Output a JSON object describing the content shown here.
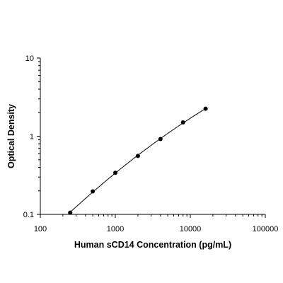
{
  "chart_data": {
    "type": "scatter",
    "title": "",
    "xlabel": "Human sCD14 Concentration (pg/mL)",
    "ylabel": "Optical Density",
    "x_scale": "log",
    "y_scale": "log",
    "xlim": [
      100,
      100000
    ],
    "ylim": [
      0.1,
      10
    ],
    "x_ticks": [
      "100",
      "1000",
      "10000",
      "100000"
    ],
    "y_ticks": [
      "0.1",
      "1",
      "10"
    ],
    "grid": false,
    "legend": "none",
    "fit_curve": true,
    "colors": {
      "axis": "#000000",
      "points": "#000000",
      "curve": "#000000"
    },
    "series": [
      {
        "x": [
          250,
          500,
          1000,
          2000,
          4000,
          8000,
          16000
        ],
        "y": [
          0.105,
          0.197,
          0.34,
          0.56,
          0.92,
          1.5,
          2.25
        ]
      }
    ]
  }
}
